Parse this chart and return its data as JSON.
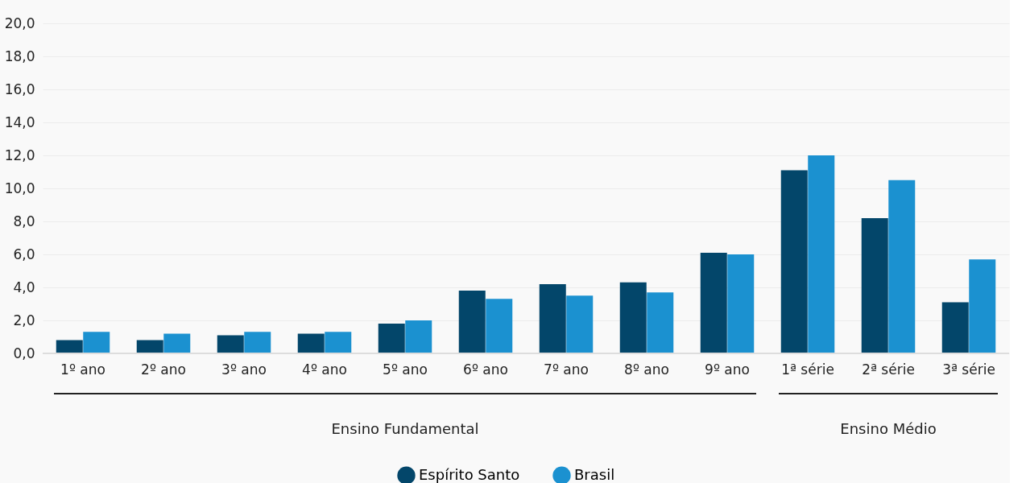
{
  "chart_data": {
    "type": "bar",
    "categories": [
      "1º ano",
      "2º ano",
      "3º ano",
      "4º ano",
      "5º ano",
      "6º ano",
      "7º ano",
      "8º ano",
      "9º ano",
      "1ª série",
      "2ª série",
      "3ª série"
    ],
    "series": [
      {
        "name": "Espírito Santo",
        "color": "#03466a",
        "values": [
          0.8,
          0.8,
          1.1,
          1.2,
          1.8,
          3.8,
          4.2,
          4.3,
          6.1,
          11.1,
          8.2,
          3.1
        ]
      },
      {
        "name": "Brasil",
        "color": "#1b91d0",
        "values": [
          1.3,
          1.2,
          1.3,
          1.3,
          2.0,
          3.3,
          3.5,
          3.7,
          6.0,
          12.0,
          10.5,
          5.7
        ]
      }
    ],
    "ylim": [
      0,
      20
    ],
    "yticks": [
      {
        "value": 0,
        "label": "0,0"
      },
      {
        "value": 2,
        "label": "2,0"
      },
      {
        "value": 4,
        "label": "4,0"
      },
      {
        "value": 6,
        "label": "6,0"
      },
      {
        "value": 8,
        "label": "8,0"
      },
      {
        "value": 10,
        "label": "10,0"
      },
      {
        "value": 12,
        "label": "12,0"
      },
      {
        "value": 14,
        "label": "14,0"
      },
      {
        "value": 16,
        "label": "16,0"
      },
      {
        "value": 18,
        "label": "18,0"
      },
      {
        "value": 20,
        "label": "20,0"
      }
    ],
    "grid": "y",
    "legend": "bottom",
    "annotations": [
      "Ensino Fundamental",
      "Ensino Médio"
    ]
  }
}
